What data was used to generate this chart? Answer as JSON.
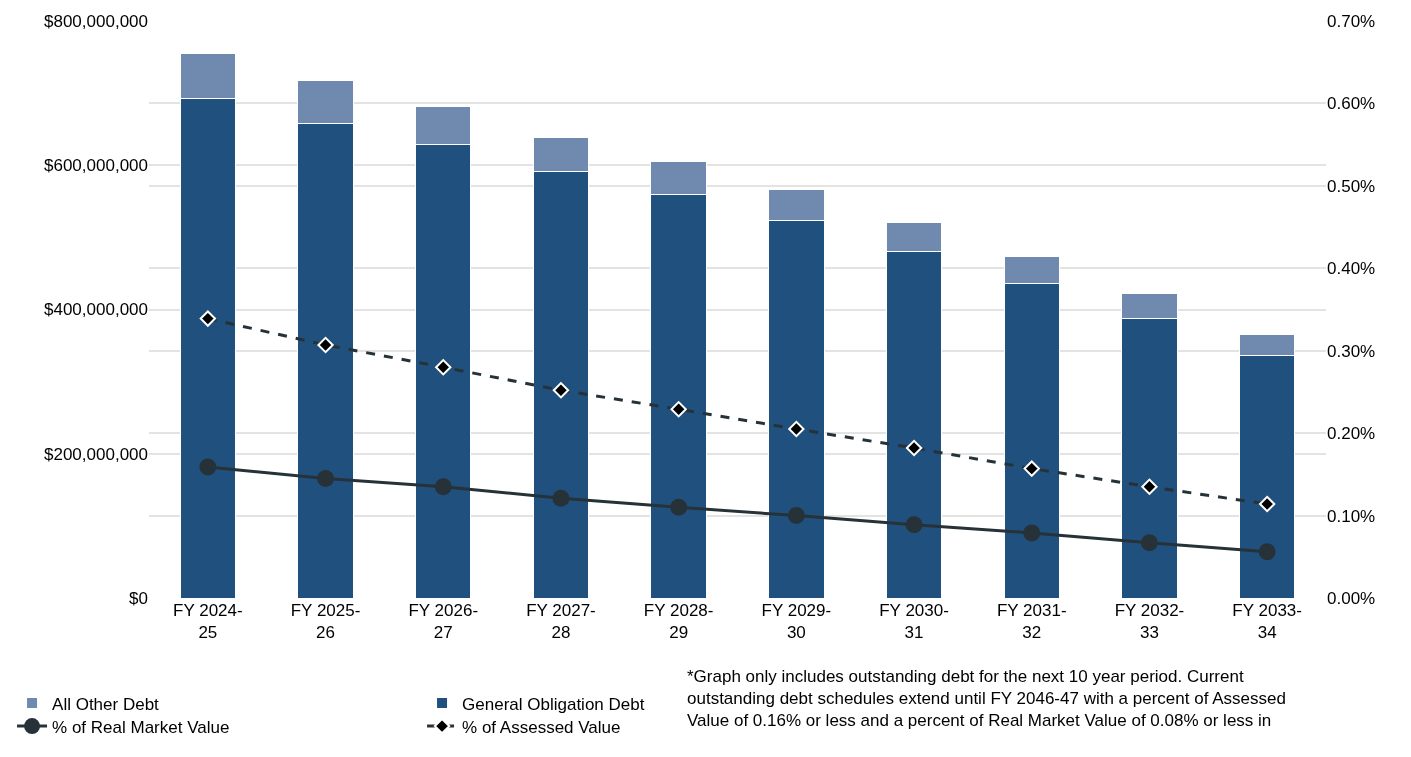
{
  "chart_data": {
    "type": "bar",
    "stacked": true,
    "grid": true,
    "legend": "bottom left",
    "categories": [
      "FY 2024-25",
      "FY 2025-26",
      "FY 2026-27",
      "FY 2027-28",
      "FY 2028-29",
      "FY 2029-30",
      "FY 2030-31",
      "FY 2031-32",
      "FY 2032-33",
      "FY 2033-34"
    ],
    "series": [
      {
        "name": "General Obligation Debt",
        "color": "#20517e",
        "values": [
          693000000,
          658000000,
          629000000,
          591000000,
          559000000,
          524000000,
          481000000,
          436000000,
          387000000,
          336000000
        ]
      },
      {
        "name": "All Other Debt",
        "color": "#6f8aae",
        "values": [
          62000000,
          59000000,
          53000000,
          48000000,
          46000000,
          43000000,
          40000000,
          37000000,
          35000000,
          30000000
        ]
      },
      {
        "name": "% of Real Market Value",
        "type": "line",
        "axis": "y2",
        "color": "#263238",
        "marker": "circle",
        "line_style": "solid",
        "values": [
          0.159,
          0.145,
          0.135,
          0.121,
          0.11,
          0.1,
          0.089,
          0.079,
          0.067,
          0.056
        ]
      },
      {
        "name": "% of Assessed Value",
        "type": "line",
        "axis": "y2",
        "color": "#263238",
        "marker": "diamond",
        "line_style": "dashed",
        "values": [
          0.339,
          0.307,
          0.28,
          0.252,
          0.229,
          0.205,
          0.182,
          0.157,
          0.135,
          0.114
        ]
      }
    ],
    "ylim": [
      0,
      800000000
    ],
    "yticks": [
      {
        "value": 0,
        "label": "$0"
      },
      {
        "value": 200000000,
        "label": "$200,000,000"
      },
      {
        "value": 400000000,
        "label": "$400,000,000"
      },
      {
        "value": 600000000,
        "label": "$600,000,000"
      },
      {
        "value": 800000000,
        "label": "$800,000,000"
      }
    ],
    "y2lim": [
      0,
      0.7
    ],
    "y2ticks": [
      {
        "value": 0,
        "label": "0.00%"
      },
      {
        "value": 0.1,
        "label": "0.10%"
      },
      {
        "value": 0.2,
        "label": "0.20%"
      },
      {
        "value": 0.3,
        "label": "0.30%"
      },
      {
        "value": 0.4,
        "label": "0.40%"
      },
      {
        "value": 0.5,
        "label": "0.50%"
      },
      {
        "value": 0.6,
        "label": "0.60%"
      },
      {
        "value": 0.7,
        "label": "0.70%"
      }
    ],
    "annotations": [
      "*Graph only includes outstanding debt for the next 10 year period. Current outstanding debt schedules extend until FY 2046-47 with a percent of Assessed Value of 0.16% or less and a percent of Real Market Value of 0.08% or less in"
    ]
  }
}
